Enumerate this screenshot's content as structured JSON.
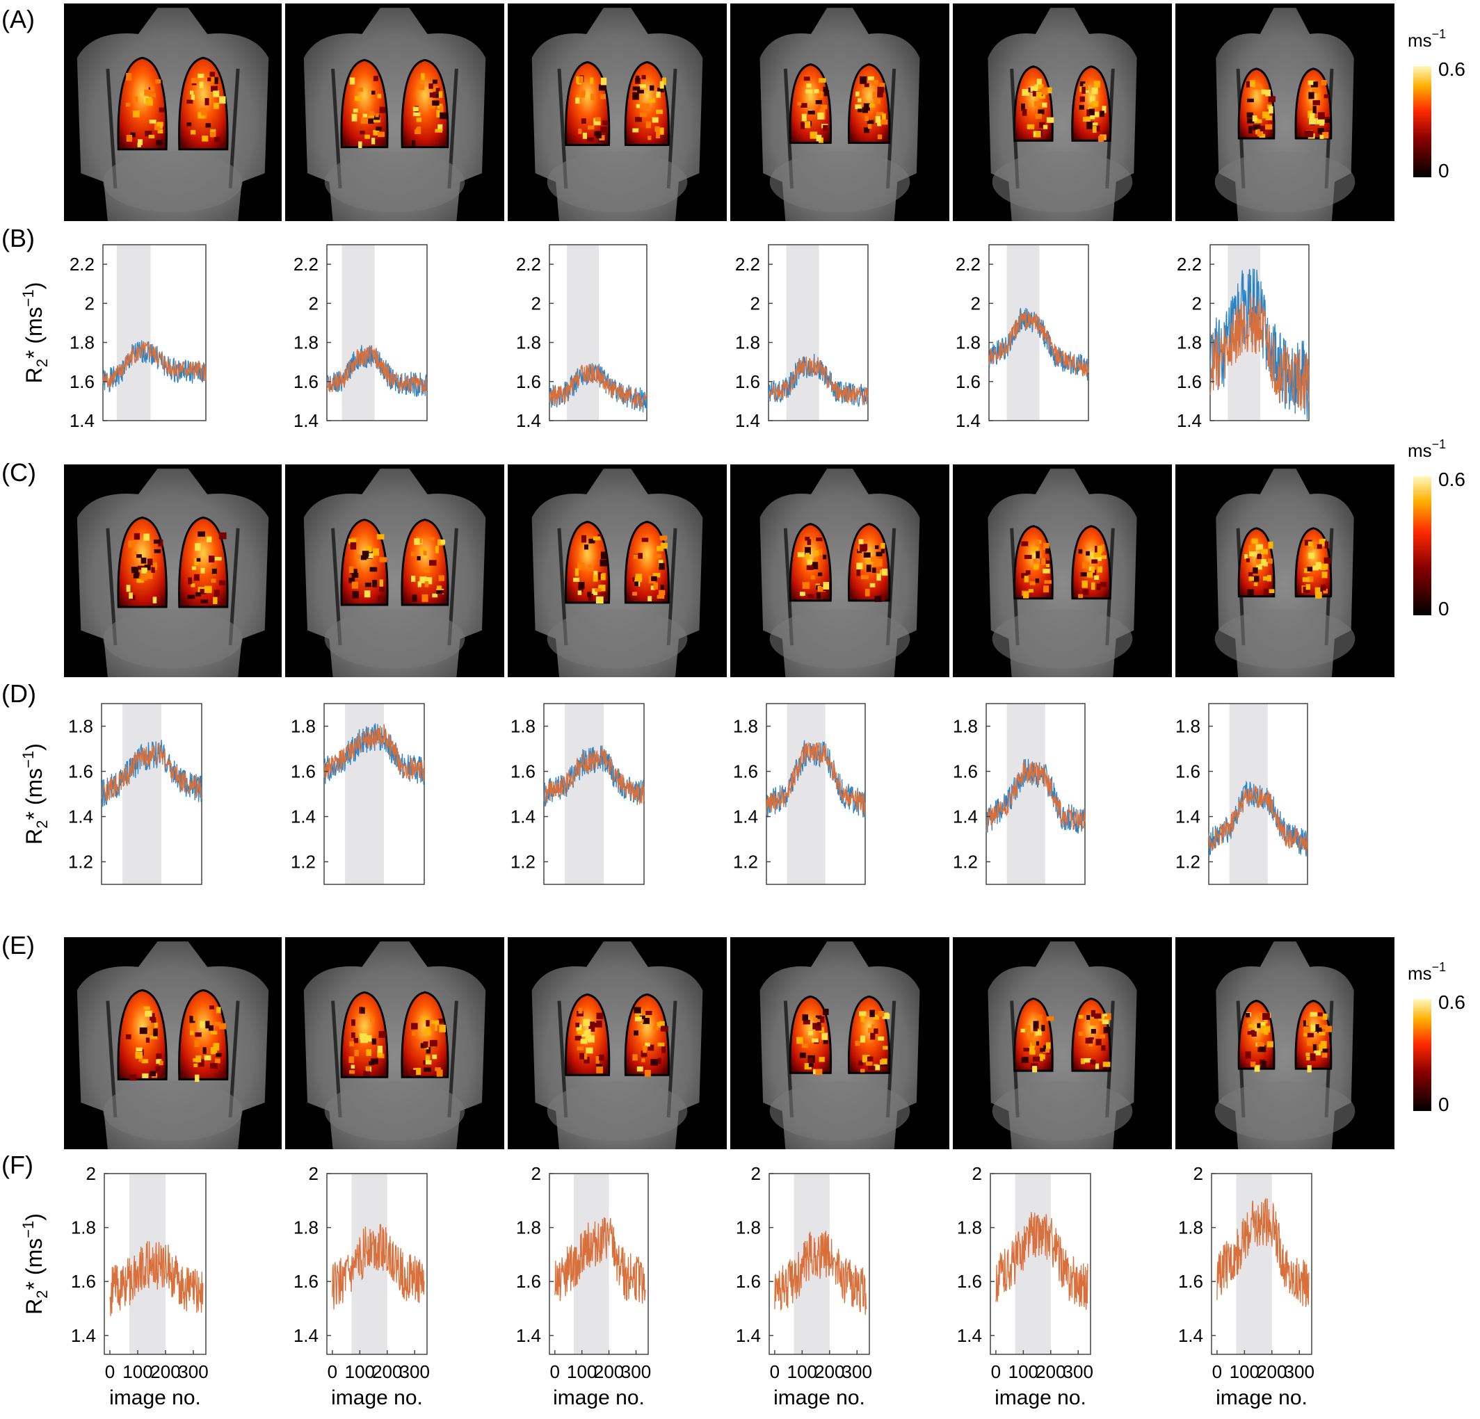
{
  "panel_labels": [
    "(A)",
    "(B)",
    "(C)",
    "(D)",
    "(E)",
    "(F)"
  ],
  "colorbar": {
    "unit": "ms",
    "unit_exponent": "−1",
    "max_label": "0.6",
    "min_label": "0"
  },
  "colors": {
    "series_all": "#2a83c6",
    "series_subset": "#d9703b",
    "shade": "#e5e4e6",
    "axes": "#444444",
    "image_bg": "#000000"
  },
  "ylabel": {
    "base": "R",
    "sub": "2",
    "suffix": "* (ms",
    "sup": "−1",
    "close": ")"
  },
  "xlabel": "image no.",
  "shaded_interval": [
    70,
    200
  ],
  "chart_data": [
    {
      "type": "line",
      "panel": "B",
      "xlim": [
        0,
        335
      ],
      "ylim": [
        1.4,
        2.3
      ],
      "yticks": [
        "1.4",
        "1.6",
        "1.8",
        "2",
        "2.2"
      ],
      "xticks": [],
      "plots": [
        {
          "shade": [
            45,
            155
          ],
          "series": [
            {
              "x": [
                0,
                45,
                100,
                150,
                220,
                335
              ],
              "values": [
                1.6,
                1.62,
                1.74,
                1.76,
                1.66,
                1.64
              ]
            },
            {
              "x": [
                0,
                45,
                100,
                150,
                220,
                335
              ],
              "values": [
                1.6,
                1.63,
                1.74,
                1.76,
                1.67,
                1.65
              ]
            }
          ]
        },
        {
          "shade": [
            50,
            160
          ],
          "series": [
            {
              "x": [
                0,
                50,
                100,
                155,
                220,
                335
              ],
              "values": [
                1.58,
                1.6,
                1.72,
                1.74,
                1.6,
                1.58
              ]
            },
            {
              "x": [
                0,
                50,
                100,
                155,
                220,
                335
              ],
              "values": [
                1.58,
                1.6,
                1.72,
                1.74,
                1.6,
                1.58
              ]
            }
          ]
        },
        {
          "shade": [
            60,
            170
          ],
          "series": [
            {
              "x": [
                0,
                60,
                110,
                165,
                230,
                335
              ],
              "values": [
                1.52,
                1.54,
                1.64,
                1.64,
                1.54,
                1.5
              ]
            },
            {
              "x": [
                0,
                60,
                110,
                165,
                230,
                335
              ],
              "values": [
                1.52,
                1.54,
                1.64,
                1.64,
                1.54,
                1.5
              ]
            }
          ]
        },
        {
          "shade": [
            60,
            170
          ],
          "series": [
            {
              "x": [
                0,
                60,
                110,
                165,
                230,
                335
              ],
              "values": [
                1.54,
                1.56,
                1.68,
                1.68,
                1.55,
                1.52
              ]
            },
            {
              "x": [
                0,
                60,
                110,
                165,
                230,
                335
              ],
              "values": [
                1.54,
                1.56,
                1.68,
                1.68,
                1.55,
                1.52
              ]
            }
          ]
        },
        {
          "shade": [
            60,
            170
          ],
          "series": [
            {
              "x": [
                0,
                60,
                110,
                165,
                230,
                335
              ],
              "values": [
                1.72,
                1.78,
                1.92,
                1.9,
                1.72,
                1.66
              ]
            },
            {
              "x": [
                0,
                60,
                110,
                165,
                230,
                335
              ],
              "values": [
                1.72,
                1.78,
                1.92,
                1.9,
                1.72,
                1.66
              ]
            }
          ]
        },
        {
          "shade": [
            60,
            170
          ],
          "series": [
            {
              "x": [
                0,
                60,
                110,
                165,
                230,
                335
              ],
              "values": [
                1.7,
                1.78,
                1.98,
                1.98,
                1.66,
                1.6
              ]
            },
            {
              "x": [
                0,
                60,
                110,
                165,
                230,
                335
              ],
              "values": [
                1.68,
                1.76,
                1.9,
                1.9,
                1.64,
                1.6
              ]
            }
          ]
        }
      ]
    },
    {
      "type": "line",
      "panel": "D",
      "xlim": [
        0,
        335
      ],
      "ylim": [
        1.1,
        1.9
      ],
      "yticks": [
        "1.2",
        "1.4",
        "1.6",
        "1.8"
      ],
      "xticks": [],
      "plots": [
        {
          "shade": [
            70,
            200
          ],
          "series": [
            {
              "x": [
                0,
                70,
                130,
                200,
                260,
                335
              ],
              "values": [
                1.5,
                1.56,
                1.66,
                1.68,
                1.56,
                1.52
              ]
            },
            {
              "x": [
                0,
                70,
                130,
                200,
                260,
                335
              ],
              "values": [
                1.5,
                1.56,
                1.66,
                1.68,
                1.56,
                1.52
              ]
            }
          ]
        },
        {
          "shade": [
            70,
            200
          ],
          "series": [
            {
              "x": [
                0,
                70,
                130,
                200,
                260,
                335
              ],
              "values": [
                1.6,
                1.66,
                1.74,
                1.76,
                1.62,
                1.6
              ]
            },
            {
              "x": [
                0,
                70,
                130,
                200,
                260,
                335
              ],
              "values": [
                1.6,
                1.66,
                1.74,
                1.76,
                1.62,
                1.6
              ]
            }
          ]
        },
        {
          "shade": [
            70,
            200
          ],
          "series": [
            {
              "x": [
                0,
                70,
                130,
                200,
                260,
                335
              ],
              "values": [
                1.5,
                1.54,
                1.64,
                1.66,
                1.54,
                1.5
              ]
            },
            {
              "x": [
                0,
                70,
                130,
                200,
                260,
                335
              ],
              "values": [
                1.5,
                1.54,
                1.64,
                1.66,
                1.54,
                1.5
              ]
            }
          ]
        },
        {
          "shade": [
            70,
            200
          ],
          "series": [
            {
              "x": [
                0,
                70,
                130,
                200,
                260,
                335
              ],
              "values": [
                1.45,
                1.5,
                1.68,
                1.68,
                1.5,
                1.45
              ]
            },
            {
              "x": [
                0,
                70,
                130,
                200,
                260,
                335
              ],
              "values": [
                1.45,
                1.5,
                1.68,
                1.68,
                1.5,
                1.45
              ]
            }
          ]
        },
        {
          "shade": [
            70,
            200
          ],
          "series": [
            {
              "x": [
                0,
                70,
                130,
                200,
                260,
                335
              ],
              "values": [
                1.38,
                1.45,
                1.6,
                1.58,
                1.4,
                1.38
              ]
            },
            {
              "x": [
                0,
                70,
                130,
                200,
                260,
                335
              ],
              "values": [
                1.38,
                1.45,
                1.6,
                1.58,
                1.4,
                1.38
              ]
            }
          ]
        },
        {
          "shade": [
            70,
            200
          ],
          "series": [
            {
              "x": [
                0,
                70,
                130,
                200,
                260,
                335
              ],
              "values": [
                1.28,
                1.35,
                1.5,
                1.48,
                1.32,
                1.28
              ]
            },
            {
              "x": [
                0,
                70,
                130,
                200,
                260,
                335
              ],
              "values": [
                1.28,
                1.35,
                1.5,
                1.48,
                1.32,
                1.28
              ]
            }
          ]
        }
      ]
    },
    {
      "type": "line",
      "panel": "F",
      "xlim": [
        -20,
        345
      ],
      "ylim": [
        1.33,
        2.0
      ],
      "yticks": [
        "1.4",
        "1.6",
        "1.8",
        "2"
      ],
      "xticks": [
        "0",
        "100",
        "200",
        "300"
      ],
      "plots": [
        {
          "shade": [
            70,
            200
          ],
          "series": [
            {
              "x": [
                0,
                70,
                130,
                200,
                260,
                335
              ],
              "values": [
                1.56,
                1.6,
                1.66,
                1.66,
                1.58,
                1.56
              ]
            }
          ]
        },
        {
          "shade": [
            70,
            200
          ],
          "series": [
            {
              "x": [
                0,
                70,
                130,
                200,
                260,
                335
              ],
              "values": [
                1.58,
                1.62,
                1.74,
                1.72,
                1.62,
                1.6
              ]
            }
          ]
        },
        {
          "shade": [
            70,
            200
          ],
          "series": [
            {
              "x": [
                0,
                70,
                130,
                200,
                260,
                335
              ],
              "values": [
                1.6,
                1.66,
                1.74,
                1.76,
                1.62,
                1.6
              ]
            }
          ]
        },
        {
          "shade": [
            70,
            200
          ],
          "series": [
            {
              "x": [
                0,
                70,
                130,
                200,
                260,
                335
              ],
              "values": [
                1.56,
                1.6,
                1.7,
                1.7,
                1.6,
                1.56
              ]
            }
          ]
        },
        {
          "shade": [
            70,
            200
          ],
          "series": [
            {
              "x": [
                0,
                70,
                130,
                200,
                260,
                335
              ],
              "values": [
                1.6,
                1.68,
                1.78,
                1.76,
                1.62,
                1.58
              ]
            }
          ]
        },
        {
          "shade": [
            70,
            200
          ],
          "series": [
            {
              "x": [
                0,
                70,
                130,
                200,
                260,
                335
              ],
              "values": [
                1.62,
                1.7,
                1.82,
                1.82,
                1.62,
                1.58
              ]
            }
          ]
        }
      ]
    }
  ]
}
